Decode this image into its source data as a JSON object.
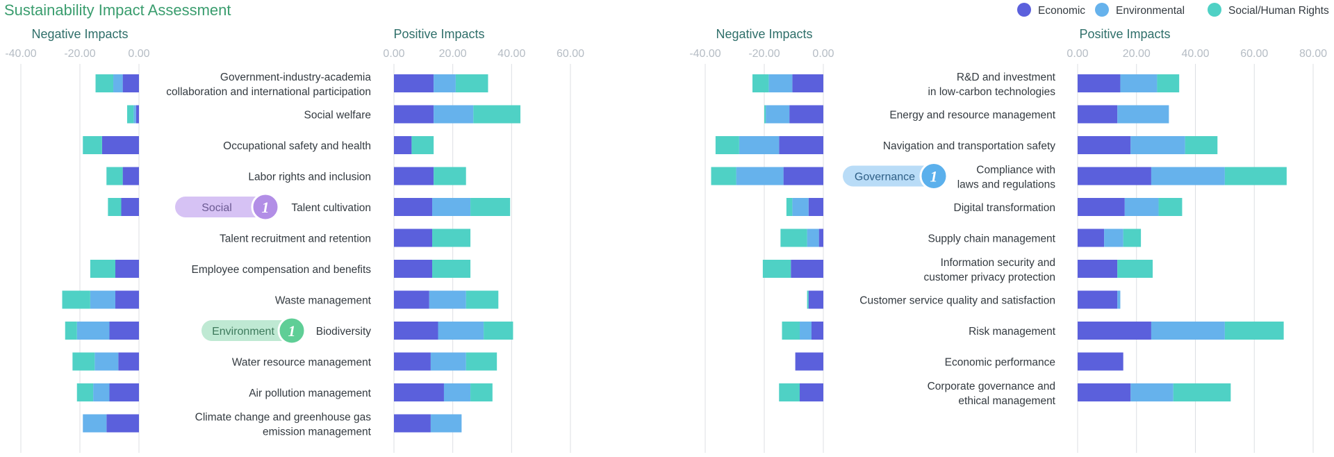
{
  "title": "Sustainability Impact Assessment",
  "colors": {
    "Economic": "#5b60dc",
    "Environmental": "#66b2ec",
    "Social/Human Rights": "#4fd1c5",
    "title": "#3a9d6e",
    "panel_title": "#2f6f6a"
  },
  "chart_data": {
    "type": "bar",
    "title": "Sustainability Impact Assessment",
    "legend": [
      "Economic",
      "Environmental",
      "Social/Human Rights"
    ],
    "legend_position": "top-right",
    "series_order": [
      "Economic",
      "Environmental",
      "Social/Human Rights"
    ],
    "groups": [
      {
        "id": "left",
        "negative_title": "Negative Impacts",
        "positive_title": "Positive Impacts",
        "neg_ticks": [
          "-40.00",
          "-20.00",
          "0.00"
        ],
        "pos_ticks": [
          "0.00",
          "20.00",
          "40.00",
          "60.00"
        ],
        "neg_range": [
          -40,
          0
        ],
        "pos_range": [
          0,
          60
        ],
        "categories": [
          {
            "label": [
              "Government-industry-academia",
              "collaboration and international participation"
            ],
            "neg": [
              5.5,
              3.2,
              6
            ],
            "pos": [
              13.5,
              7.5,
              11
            ]
          },
          {
            "label": [
              "Social welfare"
            ],
            "neg": [
              1,
              0.8,
              2.2
            ],
            "pos": [
              13.5,
              13.5,
              16
            ]
          },
          {
            "label": [
              "Occupational safety and health"
            ],
            "neg": [
              12.5,
              0,
              6.5
            ],
            "pos": [
              6,
              0,
              7.5
            ]
          },
          {
            "label": [
              "Labor rights and inclusion"
            ],
            "neg": [
              5.5,
              0,
              5.5
            ],
            "pos": [
              13.5,
              0,
              11
            ]
          },
          {
            "label": [
              "Talent cultivation"
            ],
            "neg": [
              6,
              0,
              4.5
            ],
            "pos": [
              13,
              13,
              13.5
            ]
          },
          {
            "label": [
              "Talent recruitment and retention"
            ],
            "neg": [
              0,
              0,
              0
            ],
            "pos": [
              13,
              0,
              13
            ]
          },
          {
            "label": [
              "Employee compensation and benefits"
            ],
            "neg": [
              8,
              0,
              8.5
            ],
            "pos": [
              13,
              0,
              13
            ]
          },
          {
            "label": [
              "Waste management"
            ],
            "neg": [
              8,
              8.5,
              9.5
            ],
            "pos": [
              12,
              12.5,
              11
            ]
          },
          {
            "label": [
              "Biodiversity"
            ],
            "neg": [
              10,
              11,
              4
            ],
            "pos": [
              15,
              15.5,
              10
            ]
          },
          {
            "label": [
              "Water resource management"
            ],
            "neg": [
              7,
              8,
              7.5
            ],
            "pos": [
              12.5,
              12,
              10.5
            ]
          },
          {
            "label": [
              "Air pollution management"
            ],
            "neg": [
              10,
              5.5,
              5.5
            ],
            "pos": [
              17,
              9,
              7.5
            ]
          },
          {
            "label": [
              "Climate change and greenhouse gas",
              "emission management"
            ],
            "neg": [
              11,
              8,
              0
            ],
            "pos": [
              12.5,
              10.5,
              0
            ]
          }
        ],
        "badges": [
          {
            "text": "Social",
            "num": "1",
            "row": 4,
            "fill": "#d6c2f4",
            "circle": "#b28ee6",
            "color": "#6b5a93"
          },
          {
            "text": "Environment",
            "num": "1",
            "row": 8,
            "fill": "#bfe9d3",
            "circle": "#5fce96",
            "color": "#3d7a5c"
          }
        ]
      },
      {
        "id": "right",
        "negative_title": "Negative Impacts",
        "positive_title": "Positive Impacts",
        "neg_ticks": [
          "-40.00",
          "-20.00",
          "0.00"
        ],
        "pos_ticks": [
          "0.00",
          "20.00",
          "40.00",
          "60.00",
          "80.00"
        ],
        "neg_range": [
          -40,
          0
        ],
        "pos_range": [
          0,
          80
        ],
        "categories": [
          {
            "label": [
              "R&D and investment",
              "in low-carbon technologies"
            ],
            "neg": [
              10.5,
              8,
              5.5
            ],
            "pos": [
              14.5,
              12.5,
              7.5
            ]
          },
          {
            "label": [
              "Energy and resource management"
            ],
            "neg": [
              11.5,
              8,
              0.5
            ],
            "pos": [
              13.5,
              17.5,
              0
            ]
          },
          {
            "label": [
              "Navigation and transportation safety"
            ],
            "neg": [
              15,
              13.5,
              8
            ],
            "pos": [
              18,
              18.5,
              11
            ]
          },
          {
            "label": [
              "Compliance with",
              "laws and regulations"
            ],
            "neg": [
              13.5,
              16,
              8.5
            ],
            "pos": [
              25,
              25,
              21
            ]
          },
          {
            "label": [
              "Digital transformation"
            ],
            "neg": [
              5,
              5.5,
              2
            ],
            "pos": [
              16,
              11.5,
              8
            ]
          },
          {
            "label": [
              "Supply chain management"
            ],
            "neg": [
              1.5,
              4,
              9
            ],
            "pos": [
              9,
              6.5,
              6
            ]
          },
          {
            "label": [
              "Information security and",
              "customer privacy protection"
            ],
            "neg": [
              11,
              0,
              9.5
            ],
            "pos": [
              13.5,
              0,
              12
            ]
          },
          {
            "label": [
              "Customer service quality and satisfaction"
            ],
            "neg": [
              5,
              0,
              0.5
            ],
            "pos": [
              13.5,
              1,
              0
            ]
          },
          {
            "label": [
              "Risk management"
            ],
            "neg": [
              4,
              4,
              6
            ],
            "pos": [
              25,
              25,
              20
            ]
          },
          {
            "label": [
              "Economic performance"
            ],
            "neg": [
              9.5,
              0,
              0
            ],
            "pos": [
              15.5,
              0,
              0
            ]
          },
          {
            "label": [
              "Corporate governance and",
              "ethical management"
            ],
            "neg": [
              8,
              0,
              7
            ],
            "pos": [
              18,
              14.5,
              19.5
            ]
          }
        ],
        "badges": [
          {
            "text": "Governance",
            "num": "1",
            "row": 3,
            "fill": "#b9dcf7",
            "circle": "#5bb0ec",
            "color": "#2e5f86"
          }
        ]
      }
    ]
  }
}
